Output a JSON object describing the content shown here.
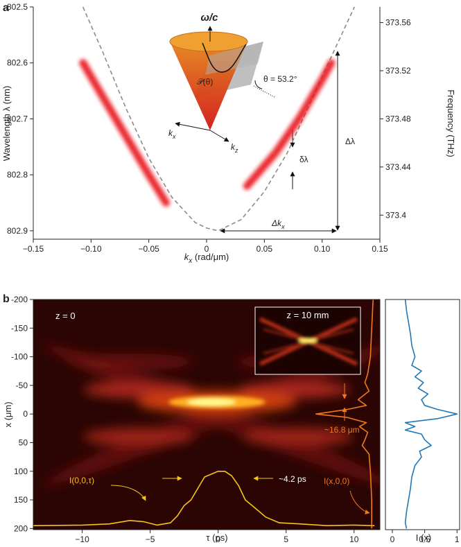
{
  "chart_data": [
    {
      "type": "line",
      "panel_label": "a",
      "y_label": "Wavelength λ (nm)",
      "y2_label": "Frequency (THz)",
      "x_label": [
        "k",
        "x",
        " (rad/μm)"
      ],
      "xlim": [
        -0.15,
        0.15
      ],
      "xticks": [
        {
          "value": -0.15,
          "label": "−0.15"
        },
        {
          "value": -0.1,
          "label": "−0.10"
        },
        {
          "value": -0.05,
          "label": "−0.05"
        },
        0,
        0.05,
        {
          "value": 0.1,
          "label": "0.10"
        },
        0.15
      ],
      "ylim": [
        802.915,
        802.5
      ],
      "yticks": [
        802.5,
        802.6,
        802.7,
        802.8,
        802.9
      ],
      "y2lim": [
        373.38,
        373.573
      ],
      "y2ticks": [
        373.56,
        373.52,
        373.48,
        373.44,
        373.4
      ],
      "series": [
        {
          "color": "#8a8a8a",
          "style": "dashed",
          "x": [
            -0.107,
            -0.09,
            -0.07,
            -0.05,
            -0.03,
            -0.01,
            0.0,
            0.01,
            0.03,
            0.05,
            0.07,
            0.09,
            0.11,
            0.128
          ],
          "values": [
            802.5,
            802.58,
            802.68,
            802.77,
            802.84,
            802.885,
            802.895,
            802.9,
            802.88,
            802.83,
            802.76,
            802.67,
            802.58,
            802.5
          ]
        },
        {
          "color": "#e8141c",
          "style": "band",
          "x": [
            -0.107,
            -0.09,
            -0.07,
            -0.05,
            -0.035
          ],
          "values": [
            802.6,
            802.66,
            802.73,
            802.8,
            802.85
          ]
        },
        {
          "color": "#e8141c",
          "style": "band",
          "x": [
            0.035,
            0.06,
            0.08,
            0.1,
            0.108
          ],
          "values": [
            802.82,
            802.76,
            802.7,
            802.63,
            802.6
          ]
        }
      ],
      "annotations": {
        "omega": "ω/c",
        "plane": "𝒫(θ)",
        "theta": "θ = 53.2°",
        "kx": [
          "k",
          "x"
        ],
        "kz": [
          "k",
          "z"
        ],
        "dlambda_small": "δλ",
        "dlambda": "Δλ",
        "dkx": [
          "Δk",
          "x"
        ]
      }
    },
    {
      "type": "heatmap",
      "panel_label": "b",
      "y_label": "x (μm)",
      "x_label": "τ (ps)",
      "xlim": [
        -13.6,
        11.9
      ],
      "xticks": [
        {
          "value": -10,
          "label": "−10"
        },
        {
          "value": -5,
          "label": "−5"
        },
        0,
        5,
        10
      ],
      "ylim": [
        202,
        -200
      ],
      "yticks": [
        -200,
        -150,
        -100,
        -50,
        0,
        50,
        100,
        150,
        200
      ],
      "series": [
        {
          "color": "#f5c518",
          "x": [
            -13.6,
            -10,
            -8,
            -6.5,
            -5.5,
            -4.5,
            -3.5,
            -3,
            -2.5,
            -2,
            -1.5,
            -1,
            -0.5,
            0,
            0.5,
            1,
            1.5,
            2,
            2.5,
            3.5,
            4.5,
            6,
            8,
            10,
            11.5
          ],
          "values": [
            195,
            194,
            192,
            186,
            188,
            194,
            190,
            178,
            160,
            150,
            130,
            110,
            105,
            100,
            100,
            108,
            125,
            150,
            160,
            180,
            190,
            192,
            195,
            194,
            195
          ]
        },
        {
          "color": "#f07a1a",
          "orientation": "vertical",
          "x": [
            -200,
            -150,
            -100,
            -70,
            -55,
            -40,
            -25,
            -15,
            -8,
            0,
            6,
            15,
            22,
            32,
            45,
            55,
            70,
            100,
            150,
            200
          ],
          "values": [
            11.4,
            11.3,
            11.2,
            11.0,
            10.8,
            11.1,
            10.3,
            10.9,
            9.5,
            7.2,
            9.5,
            10.9,
            10.4,
            11.0,
            10.8,
            10.6,
            11.1,
            11.2,
            11.3,
            11.3
          ]
        }
      ],
      "annotations": {
        "z0": "z = 0",
        "z10": "z = 10 mm",
        "width_x": "~16.8 μm",
        "profile_x": "I(x,0,0)",
        "width_t": "~4.2 ps",
        "profile_t": "I(0,0,τ)"
      }
    },
    {
      "type": "line",
      "x_label": "I (x)",
      "xlim": [
        -0.107,
        1.04
      ],
      "xticks": [
        0,
        0.5,
        1
      ],
      "ylim": [
        202,
        -200
      ],
      "series": [
        {
          "color": "#1f77b4",
          "orientation": "vertical",
          "x": [
            -200,
            -180,
            -160,
            -140,
            -120,
            -100,
            -85,
            -75,
            -65,
            -55,
            -45,
            -35,
            -25,
            -15,
            -8,
            0,
            8,
            15,
            22,
            28,
            35,
            45,
            55,
            65,
            75,
            90,
            110,
            130,
            150,
            170,
            190,
            200
          ],
          "values": [
            0.2,
            0.22,
            0.25,
            0.28,
            0.3,
            0.35,
            0.3,
            0.45,
            0.35,
            0.48,
            0.4,
            0.55,
            0.45,
            0.5,
            0.7,
            1.0,
            0.7,
            0.2,
            0.35,
            0.2,
            0.45,
            0.5,
            0.6,
            0.42,
            0.45,
            0.35,
            0.3,
            0.28,
            0.25,
            0.22,
            0.2,
            0.22
          ]
        }
      ]
    }
  ]
}
